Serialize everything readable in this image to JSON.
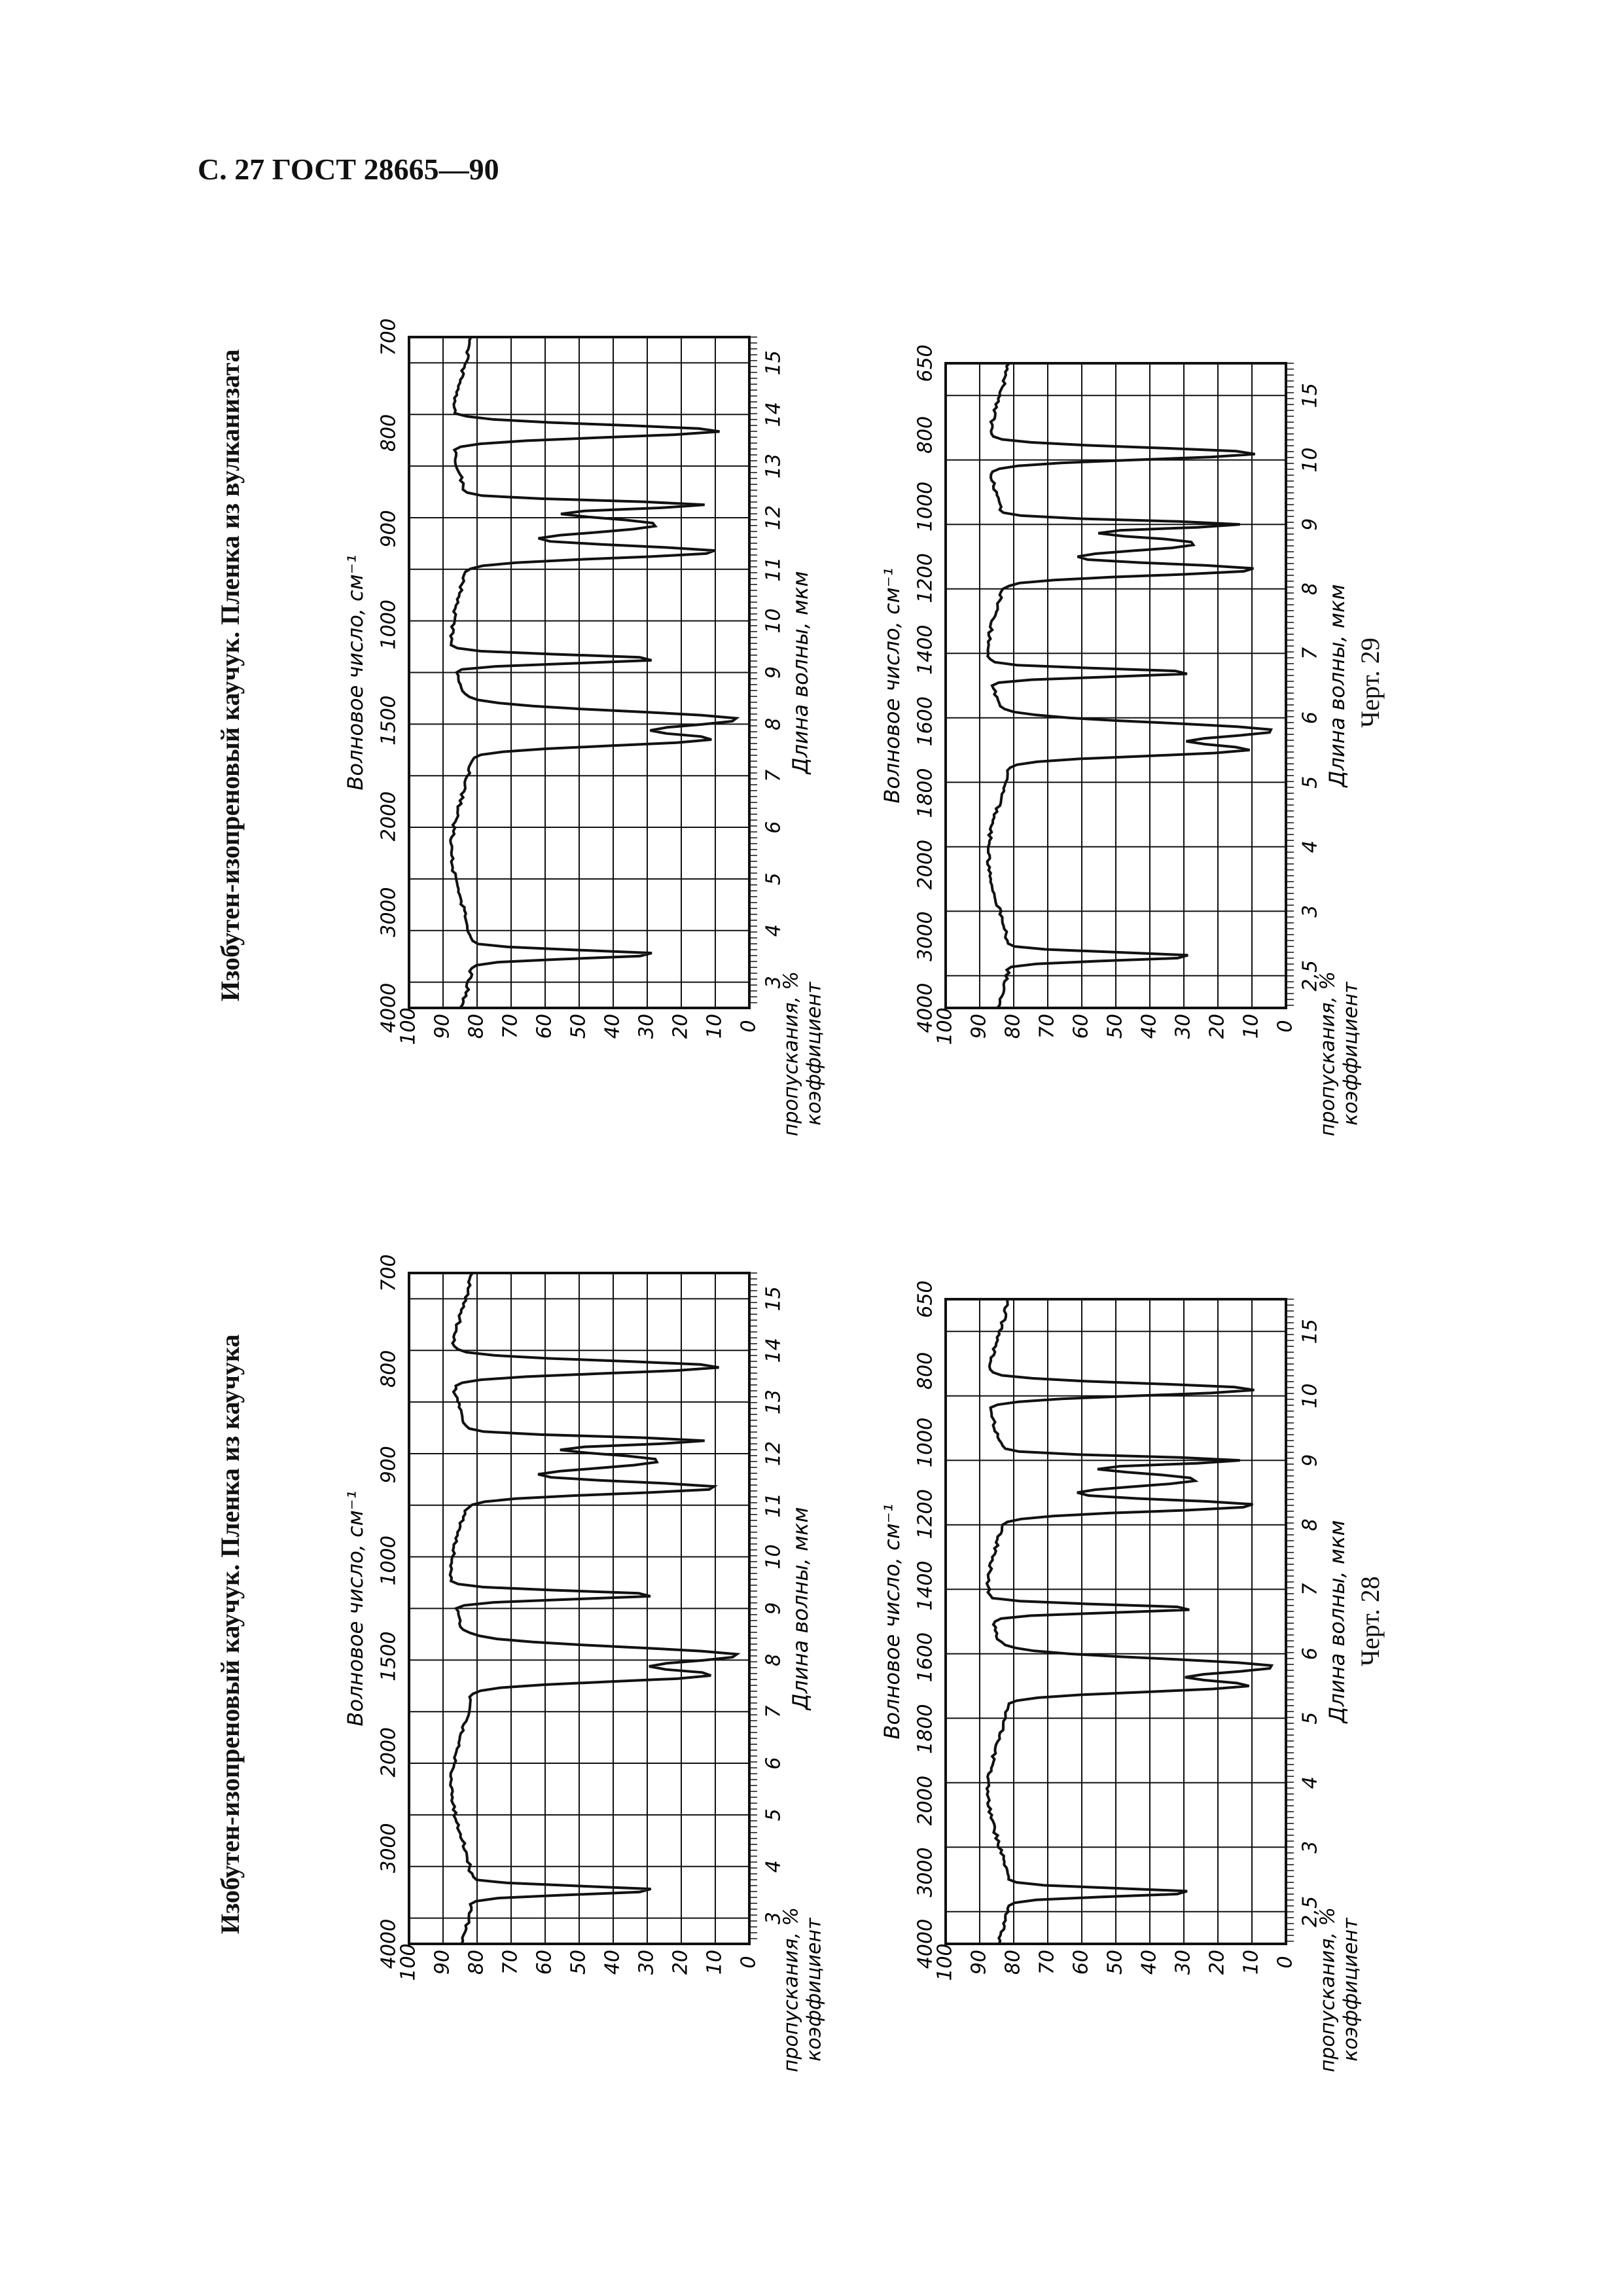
{
  "page": {
    "header": "С. 27 ГОСТ 28665—90"
  },
  "figures": [
    {
      "id": "fig28",
      "caption": "Черт. 28",
      "title": "Изобутен-изопреновый каучук. Пленка из каучука",
      "panels": [
        {
          "wavenumber_label": "Волновое число, см⁻¹",
          "wavelength_label": "Длина волны, мкм",
          "transmittance_label_1": "коэффициент",
          "transmittance_label_2": "пропускания, %",
          "wavenumber_ticks": [
            "4000",
            "3000",
            "2000",
            "1500",
            "1000",
            "900",
            "800",
            "700"
          ],
          "wavelength_ticks": [
            "3",
            "4",
            "5",
            "6",
            "7",
            "8",
            "9",
            "10",
            "11",
            "12",
            "13",
            "14",
            "15"
          ],
          "transmittance_ticks": [
            "100",
            "90",
            "80",
            "70",
            "60",
            "50",
            "40",
            "30",
            "20",
            "10",
            "0"
          ]
        },
        {
          "wavenumber_label": "Волновое число, см⁻¹",
          "wavelength_label": "Длина волны, мкм",
          "transmittance_label_1": "коэффициент",
          "transmittance_label_2": "пропускания, %",
          "wavenumber_ticks": [
            "4000",
            "3000",
            "2000",
            "1800",
            "1600",
            "1400",
            "1200",
            "1000",
            "800",
            "650"
          ],
          "wavelength_ticks": [
            "2,5",
            "3",
            "4",
            "5",
            "6",
            "7",
            "8",
            "9",
            "10",
            "15"
          ],
          "transmittance_ticks": [
            "100",
            "90",
            "80",
            "70",
            "60",
            "50",
            "40",
            "30",
            "20",
            "10",
            "0"
          ]
        }
      ]
    },
    {
      "id": "fig29",
      "caption": "Черт. 29",
      "title": "Изобутен-изопреновый каучук. Пленка из вулканизата",
      "panels": [
        {
          "wavenumber_label": "Волновое число, см⁻¹",
          "wavelength_label": "Длина волны, мкм",
          "transmittance_label_1": "коэффициент",
          "transmittance_label_2": "пропускания, %",
          "wavenumber_ticks": [
            "4000",
            "3000",
            "2000",
            "1500",
            "1000",
            "900",
            "800",
            "700"
          ],
          "wavelength_ticks": [
            "3",
            "4",
            "5",
            "6",
            "7",
            "8",
            "9",
            "10",
            "11",
            "12",
            "13",
            "14",
            "15"
          ],
          "transmittance_ticks": [
            "100",
            "90",
            "80",
            "70",
            "60",
            "50",
            "40",
            "30",
            "20",
            "10",
            "0"
          ]
        },
        {
          "wavenumber_label": "Волновое число, см⁻¹",
          "wavelength_label": "Длина волны, мкм",
          "transmittance_label_1": "коэффициент",
          "transmittance_label_2": "пропускания, %",
          "wavenumber_ticks": [
            "4000",
            "3000",
            "2000",
            "1800",
            "1600",
            "1400",
            "1200",
            "1000",
            "800",
            "650"
          ],
          "wavelength_ticks": [
            "2,5",
            "3",
            "4",
            "5",
            "6",
            "7",
            "8",
            "9",
            "10",
            "15"
          ],
          "transmittance_ticks": [
            "100",
            "90",
            "80",
            "70",
            "60",
            "50",
            "40",
            "30",
            "20",
            "10",
            "0"
          ]
        }
      ]
    }
  ]
}
